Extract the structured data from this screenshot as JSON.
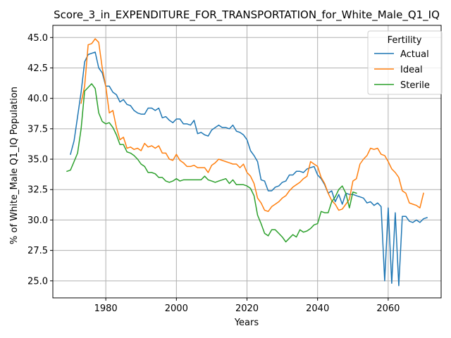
{
  "chart_data": {
    "type": "line",
    "title": "Score_3_in_EXPENDITURE_FOR_TRANSPORTATION_for_White_Male_Q1_IQ",
    "xlabel": "Years",
    "ylabel": "% of White_Male Q1_IQ Population",
    "xlim": [
      1965,
      2075
    ],
    "ylim": [
      23.6,
      46.0
    ],
    "grid": true,
    "legend": {
      "title": "Fertility",
      "placement": "top-right"
    },
    "x_ticks": [
      1980,
      2000,
      2020,
      2040,
      2060
    ],
    "x_tick_labels": [
      "1980",
      "2000",
      "2020",
      "2040",
      "2060"
    ],
    "y_ticks": [
      25.0,
      27.5,
      30.0,
      32.5,
      35.0,
      37.5,
      40.0,
      42.5,
      45.0
    ],
    "y_tick_labels": [
      "25.0",
      "27.5",
      "30.0",
      "32.5",
      "35.0",
      "37.5",
      "40.0",
      "42.5",
      "45.0"
    ],
    "series": [
      {
        "name": "Actual",
        "color": "#1f77b4",
        "points": [
          [
            1970,
            35.4
          ],
          [
            1971,
            36.5
          ],
          [
            1972,
            38.5
          ],
          [
            1973,
            40.5
          ],
          [
            1974,
            43.0
          ],
          [
            1975,
            43.6
          ],
          [
            1976,
            43.7
          ],
          [
            1977,
            43.8
          ],
          [
            1978,
            42.5
          ],
          [
            1979,
            42.1
          ],
          [
            1980,
            41.0
          ],
          [
            1981,
            41.0
          ],
          [
            1982,
            40.5
          ],
          [
            1983,
            40.3
          ],
          [
            1984,
            39.7
          ],
          [
            1985,
            39.9
          ],
          [
            1986,
            39.5
          ],
          [
            1987,
            39.4
          ],
          [
            1988,
            39.0
          ],
          [
            1989,
            38.8
          ],
          [
            1990,
            38.7
          ],
          [
            1991,
            38.7
          ],
          [
            1992,
            39.2
          ],
          [
            1993,
            39.2
          ],
          [
            1994,
            39.0
          ],
          [
            1995,
            39.2
          ],
          [
            1996,
            38.4
          ],
          [
            1997,
            38.5
          ],
          [
            1998,
            38.2
          ],
          [
            1999,
            38.0
          ],
          [
            2000,
            38.3
          ],
          [
            2001,
            38.3
          ],
          [
            2002,
            37.9
          ],
          [
            2003,
            37.9
          ],
          [
            2004,
            37.8
          ],
          [
            2005,
            38.2
          ],
          [
            2006,
            37.1
          ],
          [
            2007,
            37.2
          ],
          [
            2008,
            37.0
          ],
          [
            2009,
            36.9
          ],
          [
            2010,
            37.4
          ],
          [
            2011,
            37.6
          ],
          [
            2012,
            37.8
          ],
          [
            2013,
            37.6
          ],
          [
            2014,
            37.6
          ],
          [
            2015,
            37.5
          ],
          [
            2016,
            37.8
          ],
          [
            2017,
            37.3
          ],
          [
            2018,
            37.2
          ],
          [
            2019,
            37.0
          ],
          [
            2020,
            36.6
          ],
          [
            2021,
            35.7
          ],
          [
            2022,
            35.3
          ],
          [
            2023,
            34.8
          ],
          [
            2024,
            33.3
          ],
          [
            2025,
            33.2
          ],
          [
            2026,
            32.4
          ],
          [
            2027,
            32.4
          ],
          [
            2028,
            32.7
          ],
          [
            2029,
            32.8
          ],
          [
            2030,
            33.1
          ],
          [
            2031,
            33.2
          ],
          [
            2032,
            33.7
          ],
          [
            2033,
            33.7
          ],
          [
            2034,
            34.0
          ],
          [
            2035,
            34.0
          ],
          [
            2036,
            33.9
          ],
          [
            2037,
            34.2
          ],
          [
            2038,
            34.3
          ],
          [
            2039,
            34.4
          ],
          [
            2040,
            33.7
          ],
          [
            2041,
            33.4
          ],
          [
            2042,
            32.9
          ],
          [
            2043,
            32.2
          ],
          [
            2044,
            32.4
          ],
          [
            2045,
            31.5
          ],
          [
            2046,
            32.1
          ],
          [
            2047,
            31.3
          ],
          [
            2048,
            32.2
          ],
          [
            2049,
            32.1
          ],
          [
            2050,
            32.1
          ],
          [
            2051,
            32.0
          ],
          [
            2052,
            31.9
          ],
          [
            2053,
            31.8
          ],
          [
            2054,
            31.4
          ],
          [
            2055,
            31.5
          ],
          [
            2056,
            31.2
          ],
          [
            2057,
            31.4
          ],
          [
            2058,
            31.1
          ],
          [
            2059,
            25.0
          ],
          [
            2060,
            31.0
          ],
          [
            2061,
            24.8
          ],
          [
            2062,
            30.6
          ],
          [
            2063,
            24.6
          ],
          [
            2064,
            30.3
          ],
          [
            2065,
            30.3
          ],
          [
            2066,
            29.9
          ],
          [
            2067,
            29.8
          ],
          [
            2068,
            30.0
          ],
          [
            2069,
            29.8
          ],
          [
            2070,
            30.1
          ],
          [
            2071,
            30.2
          ]
        ]
      },
      {
        "name": "Ideal",
        "color": "#ff7f0e",
        "points": [
          [
            1973,
            39.6
          ],
          [
            1974,
            41.0
          ],
          [
            1975,
            44.4
          ],
          [
            1976,
            44.5
          ],
          [
            1977,
            44.9
          ],
          [
            1978,
            44.6
          ],
          [
            1979,
            42.5
          ],
          [
            1980,
            41.0
          ],
          [
            1981,
            38.8
          ],
          [
            1982,
            39.0
          ],
          [
            1983,
            37.6
          ],
          [
            1984,
            36.6
          ],
          [
            1985,
            36.8
          ],
          [
            1986,
            35.9
          ],
          [
            1987,
            36.0
          ],
          [
            1988,
            35.8
          ],
          [
            1989,
            35.9
          ],
          [
            1990,
            35.7
          ],
          [
            1991,
            36.3
          ],
          [
            1992,
            36.0
          ],
          [
            1993,
            36.1
          ],
          [
            1994,
            35.9
          ],
          [
            1995,
            36.1
          ],
          [
            1996,
            35.5
          ],
          [
            1997,
            35.5
          ],
          [
            1998,
            35.0
          ],
          [
            1999,
            34.9
          ],
          [
            2000,
            35.4
          ],
          [
            2001,
            34.9
          ],
          [
            2002,
            34.7
          ],
          [
            2003,
            34.4
          ],
          [
            2004,
            34.4
          ],
          [
            2005,
            34.5
          ],
          [
            2006,
            34.3
          ],
          [
            2007,
            34.3
          ],
          [
            2008,
            34.3
          ],
          [
            2009,
            33.9
          ],
          [
            2010,
            34.5
          ],
          [
            2011,
            34.7
          ],
          [
            2012,
            35.0
          ],
          [
            2013,
            34.9
          ],
          [
            2014,
            34.8
          ],
          [
            2015,
            34.7
          ],
          [
            2016,
            34.6
          ],
          [
            2017,
            34.6
          ],
          [
            2018,
            34.3
          ],
          [
            2019,
            34.6
          ],
          [
            2020,
            33.9
          ],
          [
            2021,
            33.6
          ],
          [
            2022,
            33.0
          ],
          [
            2023,
            31.8
          ],
          [
            2024,
            31.4
          ],
          [
            2025,
            30.8
          ],
          [
            2026,
            30.7
          ],
          [
            2027,
            31.1
          ],
          [
            2028,
            31.3
          ],
          [
            2029,
            31.5
          ],
          [
            2030,
            31.8
          ],
          [
            2031,
            32.0
          ],
          [
            2032,
            32.4
          ],
          [
            2033,
            32.7
          ],
          [
            2034,
            32.9
          ],
          [
            2035,
            33.1
          ],
          [
            2036,
            33.4
          ],
          [
            2037,
            33.6
          ],
          [
            2038,
            34.8
          ],
          [
            2039,
            34.6
          ],
          [
            2040,
            34.4
          ],
          [
            2041,
            33.5
          ],
          [
            2042,
            33.0
          ],
          [
            2043,
            32.2
          ],
          [
            2044,
            31.6
          ],
          [
            2045,
            31.3
          ],
          [
            2046,
            30.8
          ],
          [
            2047,
            30.9
          ],
          [
            2048,
            31.3
          ],
          [
            2049,
            31.7
          ],
          [
            2050,
            33.2
          ],
          [
            2051,
            33.4
          ],
          [
            2052,
            34.6
          ],
          [
            2053,
            35.0
          ],
          [
            2054,
            35.3
          ],
          [
            2055,
            35.9
          ],
          [
            2056,
            35.8
          ],
          [
            2057,
            35.9
          ],
          [
            2058,
            35.4
          ],
          [
            2059,
            35.3
          ],
          [
            2060,
            34.8
          ],
          [
            2061,
            34.2
          ],
          [
            2062,
            33.9
          ],
          [
            2063,
            33.5
          ],
          [
            2064,
            32.4
          ],
          [
            2065,
            32.2
          ],
          [
            2066,
            31.4
          ],
          [
            2067,
            31.3
          ],
          [
            2068,
            31.2
          ],
          [
            2069,
            31.0
          ],
          [
            2070,
            32.2
          ]
        ]
      },
      {
        "name": "Sterile",
        "color": "#2ca02c",
        "points": [
          [
            1969,
            34.0
          ],
          [
            1970,
            34.1
          ],
          [
            1971,
            34.8
          ],
          [
            1972,
            35.5
          ],
          [
            1973,
            37.5
          ],
          [
            1974,
            40.6
          ],
          [
            1975,
            40.9
          ],
          [
            1976,
            41.2
          ],
          [
            1977,
            40.8
          ],
          [
            1978,
            38.8
          ],
          [
            1979,
            38.1
          ],
          [
            1980,
            37.9
          ],
          [
            1981,
            38.0
          ],
          [
            1982,
            37.6
          ],
          [
            1983,
            37.0
          ],
          [
            1984,
            36.2
          ],
          [
            1985,
            36.2
          ],
          [
            1986,
            35.6
          ],
          [
            1987,
            35.5
          ],
          [
            1988,
            35.3
          ],
          [
            1989,
            35.0
          ],
          [
            1990,
            34.6
          ],
          [
            1991,
            34.4
          ],
          [
            1992,
            33.9
          ],
          [
            1993,
            33.9
          ],
          [
            1994,
            33.8
          ],
          [
            1995,
            33.5
          ],
          [
            1996,
            33.5
          ],
          [
            1997,
            33.2
          ],
          [
            1998,
            33.1
          ],
          [
            1999,
            33.2
          ],
          [
            2000,
            33.4
          ],
          [
            2001,
            33.2
          ],
          [
            2002,
            33.3
          ],
          [
            2003,
            33.3
          ],
          [
            2004,
            33.3
          ],
          [
            2005,
            33.3
          ],
          [
            2006,
            33.3
          ],
          [
            2007,
            33.3
          ],
          [
            2008,
            33.6
          ],
          [
            2009,
            33.3
          ],
          [
            2010,
            33.2
          ],
          [
            2011,
            33.1
          ],
          [
            2012,
            33.2
          ],
          [
            2013,
            33.3
          ],
          [
            2014,
            33.4
          ],
          [
            2015,
            33.0
          ],
          [
            2016,
            33.3
          ],
          [
            2017,
            32.9
          ],
          [
            2018,
            32.9
          ],
          [
            2019,
            32.9
          ],
          [
            2020,
            32.8
          ],
          [
            2021,
            32.6
          ],
          [
            2022,
            32.0
          ],
          [
            2023,
            30.4
          ],
          [
            2024,
            29.7
          ],
          [
            2025,
            28.9
          ],
          [
            2026,
            28.7
          ],
          [
            2027,
            29.2
          ],
          [
            2028,
            29.2
          ],
          [
            2029,
            28.9
          ],
          [
            2030,
            28.6
          ],
          [
            2031,
            28.2
          ],
          [
            2032,
            28.5
          ],
          [
            2033,
            28.8
          ],
          [
            2034,
            28.6
          ],
          [
            2035,
            29.2
          ],
          [
            2036,
            29.0
          ],
          [
            2037,
            29.1
          ],
          [
            2038,
            29.3
          ],
          [
            2039,
            29.6
          ],
          [
            2040,
            29.7
          ],
          [
            2041,
            30.7
          ],
          [
            2042,
            30.6
          ],
          [
            2043,
            30.6
          ],
          [
            2044,
            31.5
          ],
          [
            2045,
            31.9
          ],
          [
            2046,
            32.5
          ],
          [
            2047,
            32.8
          ],
          [
            2048,
            32.2
          ],
          [
            2049,
            31.0
          ],
          [
            2050,
            32.3
          ],
          [
            2051,
            32.2
          ]
        ]
      }
    ]
  }
}
